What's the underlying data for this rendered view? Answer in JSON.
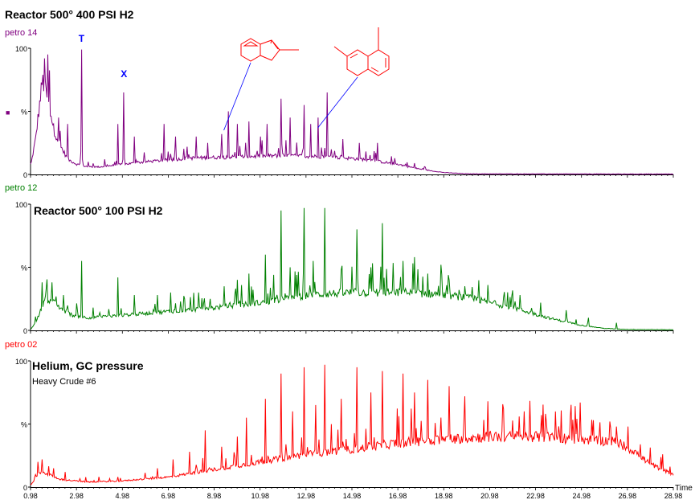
{
  "chart_data": {
    "type": "line",
    "x_axis": {
      "label": "Time",
      "range": [
        0.98,
        28.98
      ],
      "ticks": [
        "0.98",
        "2.98",
        "4.98",
        "6.98",
        "8.98",
        "10.98",
        "12.98",
        "14.98",
        "16.98",
        "18.98",
        "20.98",
        "22.98",
        "24.98",
        "26.98",
        "28.98"
      ]
    },
    "panels": [
      {
        "trace_label": "petro 14",
        "title": "Reactor 500° 400 PSI H2",
        "subtitle": "",
        "color": "#800080",
        "y_ticks": [
          "100",
          "%",
          "0"
        ],
        "marker": "■",
        "peak_labels": [
          {
            "text": "T",
            "x": 3.2,
            "color": "#0000ff"
          },
          {
            "text": "X",
            "x": 5.05,
            "color": "#0000ff"
          }
        ],
        "baseline": [
          [
            1.0,
            8
          ],
          [
            1.2,
            28
          ],
          [
            1.5,
            75
          ],
          [
            1.8,
            55
          ],
          [
            2.0,
            35
          ],
          [
            2.3,
            22
          ],
          [
            2.6,
            12
          ],
          [
            3.0,
            8
          ],
          [
            3.5,
            6
          ],
          [
            4.0,
            6
          ],
          [
            6.0,
            10
          ],
          [
            8.0,
            13
          ],
          [
            10.0,
            14
          ],
          [
            12.0,
            15
          ],
          [
            14.0,
            14
          ],
          [
            15.5,
            12
          ],
          [
            17.0,
            8
          ],
          [
            18.0,
            4
          ],
          [
            19.0,
            1.5
          ],
          [
            20.0,
            0.5
          ],
          [
            28.98,
            0.3
          ]
        ],
        "peaks": [
          [
            1.6,
            92
          ],
          [
            1.75,
            95
          ],
          [
            2.2,
            45
          ],
          [
            2.6,
            40
          ],
          [
            3.2,
            99
          ],
          [
            3.5,
            10
          ],
          [
            4.2,
            12
          ],
          [
            4.8,
            40
          ],
          [
            5.05,
            65
          ],
          [
            5.5,
            30
          ],
          [
            6.8,
            40
          ],
          [
            7.3,
            30
          ],
          [
            7.8,
            22
          ],
          [
            8.2,
            30
          ],
          [
            8.7,
            25
          ],
          [
            9.3,
            32
          ],
          [
            9.6,
            50
          ],
          [
            10.0,
            40
          ],
          [
            10.5,
            42
          ],
          [
            11.0,
            30
          ],
          [
            11.3,
            40
          ],
          [
            11.9,
            60
          ],
          [
            12.3,
            45
          ],
          [
            12.9,
            55
          ],
          [
            13.2,
            40
          ],
          [
            13.5,
            45
          ],
          [
            13.9,
            65
          ],
          [
            14.6,
            28
          ],
          [
            15.3,
            25
          ],
          [
            16.1,
            25
          ]
        ]
      },
      {
        "trace_label": "petro 12",
        "title": "Reactor 500°  100 PSI H2",
        "subtitle": "",
        "color": "#008000",
        "y_ticks": [
          "100",
          "%",
          "0"
        ],
        "marker": "",
        "peak_labels": [],
        "baseline": [
          [
            1.0,
            1
          ],
          [
            1.3,
            10
          ],
          [
            1.6,
            25
          ],
          [
            2.0,
            22
          ],
          [
            2.4,
            16
          ],
          [
            2.8,
            12
          ],
          [
            3.5,
            10
          ],
          [
            5.0,
            12
          ],
          [
            7.0,
            15
          ],
          [
            9.0,
            18
          ],
          [
            11.0,
            22
          ],
          [
            13.0,
            28
          ],
          [
            15.0,
            30
          ],
          [
            17.0,
            30
          ],
          [
            18.5,
            29
          ],
          [
            20.0,
            26
          ],
          [
            22.0,
            18
          ],
          [
            23.5,
            10
          ],
          [
            25.0,
            4
          ],
          [
            26.0,
            1.5
          ],
          [
            27.0,
            0.8
          ],
          [
            28.98,
            0.5
          ]
        ],
        "peaks": [
          [
            1.5,
            38
          ],
          [
            1.9,
            38
          ],
          [
            2.4,
            28
          ],
          [
            3.2,
            55
          ],
          [
            3.7,
            18
          ],
          [
            4.8,
            42
          ],
          [
            5.5,
            28
          ],
          [
            6.5,
            28
          ],
          [
            7.1,
            30
          ],
          [
            7.7,
            25
          ],
          [
            8.3,
            30
          ],
          [
            9.4,
            35
          ],
          [
            10.0,
            40
          ],
          [
            10.5,
            45
          ],
          [
            11.2,
            60
          ],
          [
            11.9,
            95
          ],
          [
            12.3,
            50
          ],
          [
            12.9,
            97
          ],
          [
            13.3,
            55
          ],
          [
            13.8,
            97
          ],
          [
            14.5,
            48
          ],
          [
            15.2,
            80
          ],
          [
            15.8,
            50
          ],
          [
            16.3,
            85
          ],
          [
            17.2,
            55
          ],
          [
            17.7,
            58
          ],
          [
            18.3,
            45
          ],
          [
            19.2,
            40
          ],
          [
            19.9,
            35
          ],
          [
            20.9,
            36
          ],
          [
            21.6,
            26
          ],
          [
            22.3,
            28
          ],
          [
            23.2,
            22
          ],
          [
            24.3,
            16
          ],
          [
            25.3,
            10
          ],
          [
            26.5,
            6
          ]
        ]
      },
      {
        "trace_label": "petro 02",
        "title": "Helium, GC pressure",
        "subtitle": "Heavy Crude #6",
        "color": "#ff0000",
        "y_ticks": [
          "100",
          "%",
          "0"
        ],
        "marker": "",
        "peak_labels": [],
        "baseline": [
          [
            1.0,
            2
          ],
          [
            1.4,
            12
          ],
          [
            1.8,
            10
          ],
          [
            2.3,
            6
          ],
          [
            3.5,
            4
          ],
          [
            5.0,
            5
          ],
          [
            7.0,
            8
          ],
          [
            9.0,
            14
          ],
          [
            11.0,
            20
          ],
          [
            13.0,
            26
          ],
          [
            15.0,
            30
          ],
          [
            17.0,
            35
          ],
          [
            19.0,
            38
          ],
          [
            21.0,
            40
          ],
          [
            23.0,
            40
          ],
          [
            25.0,
            38
          ],
          [
            26.5,
            36
          ],
          [
            27.3,
            28
          ],
          [
            28.0,
            18
          ],
          [
            28.98,
            10
          ]
        ],
        "peaks": [
          [
            1.3,
            20
          ],
          [
            1.5,
            22
          ],
          [
            2.0,
            15
          ],
          [
            2.5,
            12
          ],
          [
            4.8,
            8
          ],
          [
            6.5,
            15
          ],
          [
            7.2,
            22
          ],
          [
            7.9,
            28
          ],
          [
            8.6,
            45
          ],
          [
            9.3,
            32
          ],
          [
            10.0,
            40
          ],
          [
            10.4,
            55
          ],
          [
            11.2,
            70
          ],
          [
            11.9,
            90
          ],
          [
            12.4,
            60
          ],
          [
            12.9,
            95
          ],
          [
            13.4,
            65
          ],
          [
            13.8,
            97
          ],
          [
            14.5,
            70
          ],
          [
            15.2,
            95
          ],
          [
            15.8,
            75
          ],
          [
            16.3,
            92
          ],
          [
            17.2,
            90
          ],
          [
            17.7,
            75
          ],
          [
            18.3,
            85
          ],
          [
            19.2,
            80
          ],
          [
            19.9,
            72
          ],
          [
            20.9,
            68
          ],
          [
            21.6,
            62
          ],
          [
            22.5,
            60
          ],
          [
            23.4,
            58
          ],
          [
            24.5,
            56
          ],
          [
            25.5,
            53
          ],
          [
            26.2,
            52
          ],
          [
            27.0,
            48
          ]
        ]
      }
    ],
    "annotations": [
      {
        "type": "molecule-structure",
        "name": "2-methylindene",
        "target_x": 9.4,
        "color": "#ff0000"
      },
      {
        "type": "molecule-structure",
        "name": "dimethylnaphthalene",
        "target_x": 13.5,
        "color": "#ff0000"
      }
    ]
  }
}
